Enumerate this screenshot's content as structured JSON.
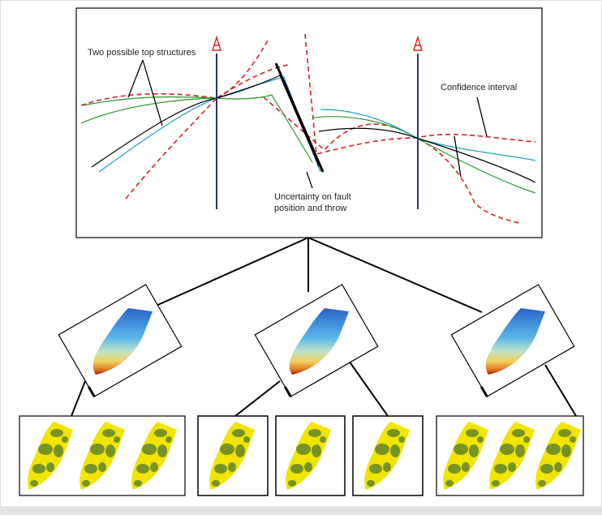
{
  "annotations": [
    {
      "lines": [
        "Two possible top structures"
      ]
    },
    {
      "lines": [
        "Uncertainty on fault",
        "position and throw"
      ]
    },
    {
      "lines": [
        "Confidence interval"
      ]
    }
  ]
}
